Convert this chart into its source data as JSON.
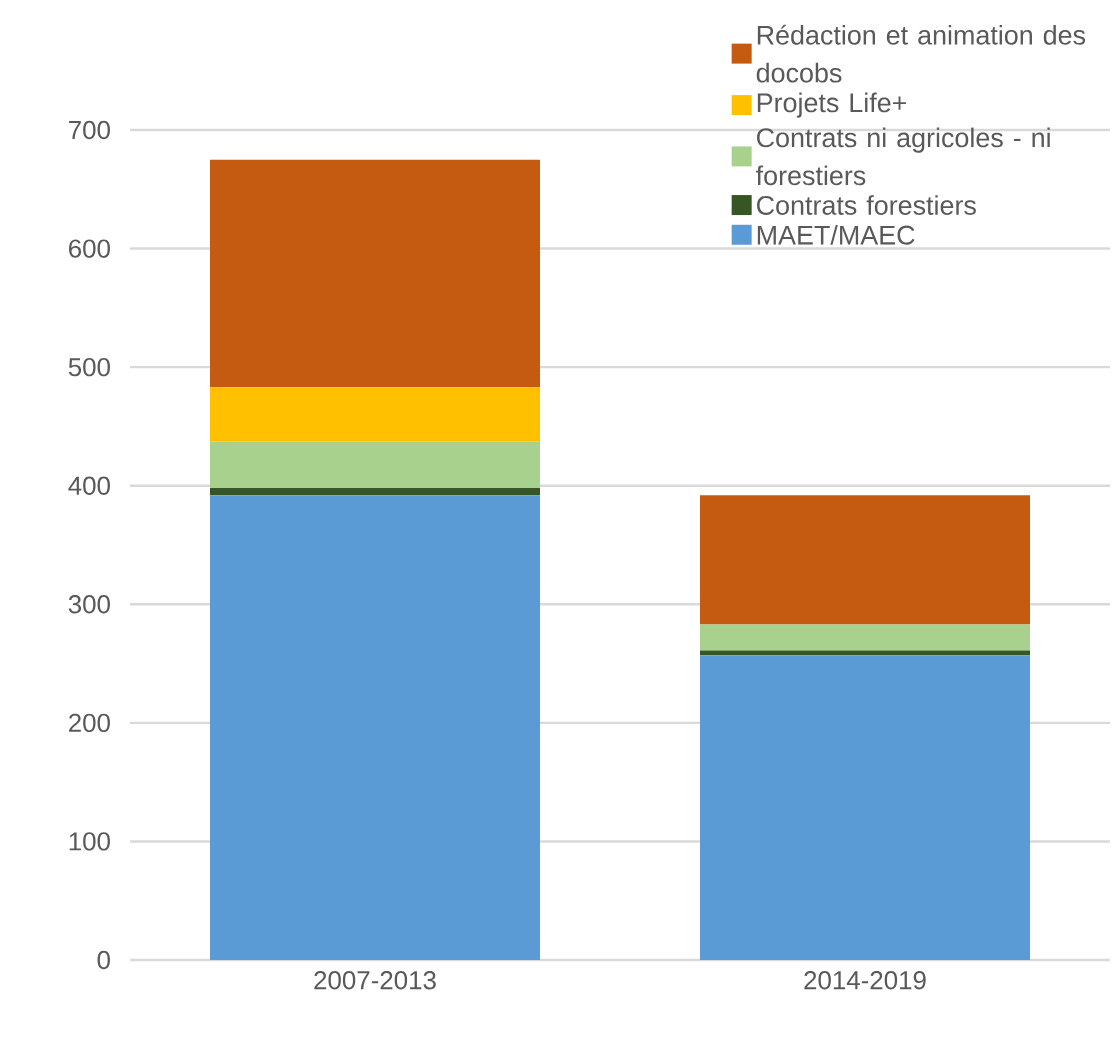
{
  "chart_data": {
    "type": "bar",
    "stacked": true,
    "categories": [
      "2007-2013",
      "2014-2019"
    ],
    "series": [
      {
        "name": "MAET/MAEC",
        "color": "#5b9bd5",
        "values": [
          392,
          257
        ]
      },
      {
        "name": "Contrats forestiers",
        "color": "#375623",
        "values": [
          6,
          4
        ]
      },
      {
        "name": "Contrats ni agricoles - ni forestiers",
        "color": "#a9d18e",
        "values": [
          39,
          22
        ]
      },
      {
        "name": "Projets Life+",
        "color": "#ffc000",
        "values": [
          46,
          0
        ]
      },
      {
        "name": "Rédaction et animation des docobs",
        "color": "#c55a11",
        "values": [
          192,
          109
        ]
      }
    ],
    "ylim": [
      0,
      700
    ],
    "yticks": [
      0,
      100,
      200,
      300,
      400,
      500,
      600,
      700
    ],
    "grid": "y",
    "legend": "top right"
  }
}
